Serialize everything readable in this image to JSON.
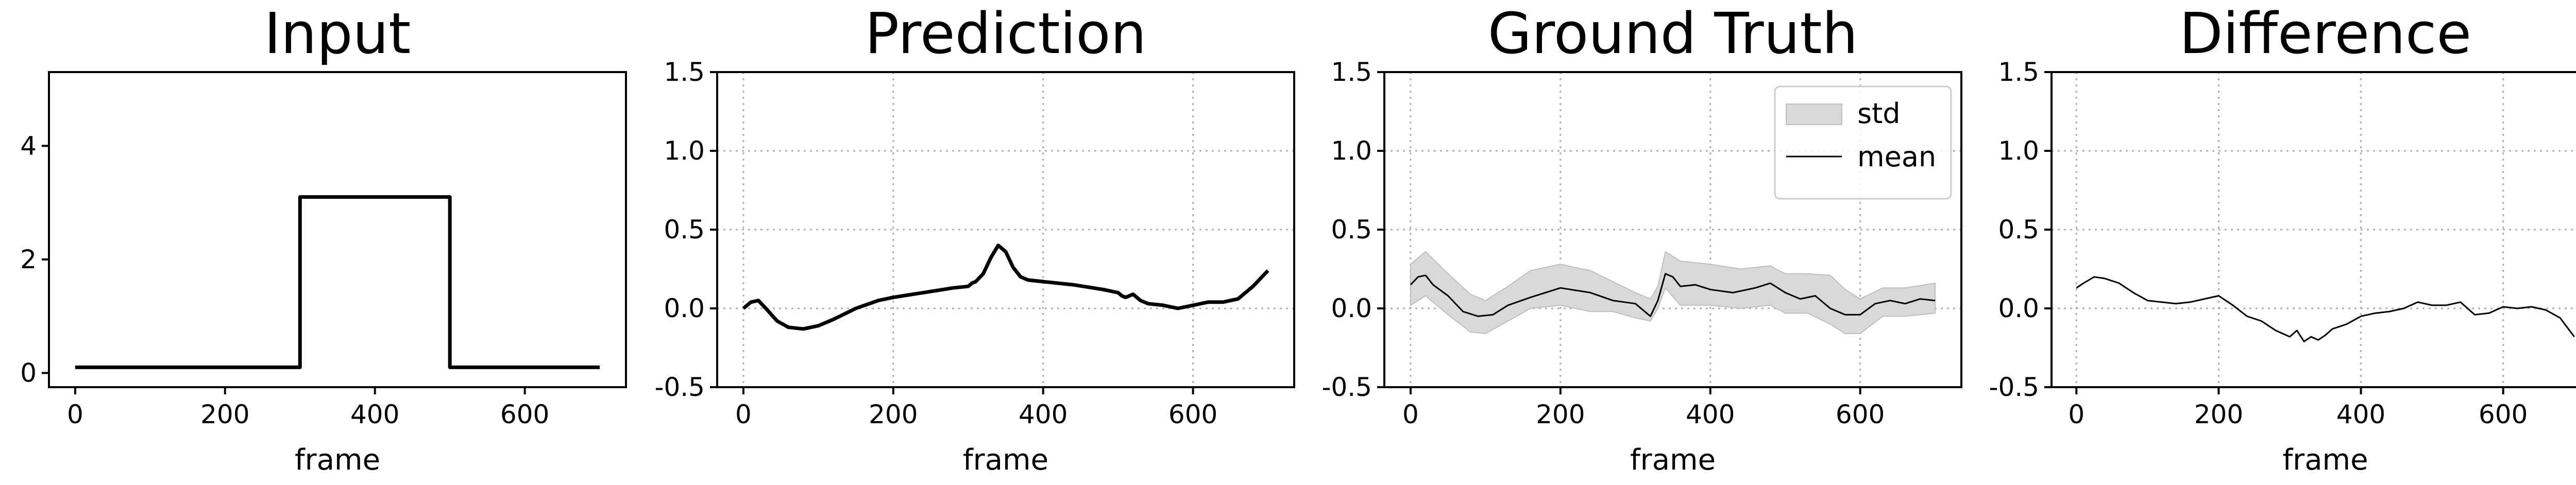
{
  "chart_data": [
    {
      "type": "line",
      "title": "Input",
      "xlabel": "frame",
      "ylabel": "",
      "xlim": [
        -35,
        735
      ],
      "ylim": [
        -0.25,
        5.3
      ],
      "xticks": [
        0,
        200,
        400,
        600
      ],
      "yticks": [
        0,
        2,
        4
      ],
      "grid": false,
      "series": [
        {
          "color": "#000000",
          "line_width": "thick",
          "x": [
            0,
            300,
            300,
            500,
            500,
            700
          ],
          "y": [
            0.1,
            0.1,
            3.1,
            3.1,
            0.1,
            0.1
          ]
        }
      ]
    },
    {
      "type": "line",
      "title": "Prediction",
      "xlabel": "frame",
      "ylabel": "",
      "xlim": [
        -35,
        735
      ],
      "ylim": [
        -0.5,
        1.5
      ],
      "xticks": [
        0,
        200,
        400,
        600
      ],
      "yticks": [
        -0.5,
        0.0,
        0.5,
        1.0,
        1.5
      ],
      "grid": true,
      "series": [
        {
          "color": "#000000",
          "line_width": "thick",
          "x": [
            0,
            10,
            20,
            30,
            45,
            60,
            80,
            100,
            120,
            150,
            180,
            200,
            240,
            280,
            300,
            305,
            310,
            320,
            330,
            340,
            350,
            360,
            370,
            380,
            400,
            440,
            480,
            500,
            505,
            510,
            520,
            530,
            540,
            560,
            580,
            600,
            620,
            640,
            660,
            680,
            700
          ],
          "y": [
            0.0,
            0.04,
            0.05,
            0.0,
            -0.08,
            -0.12,
            -0.13,
            -0.11,
            -0.07,
            0.0,
            0.05,
            0.07,
            0.1,
            0.13,
            0.14,
            0.16,
            0.17,
            0.22,
            0.32,
            0.4,
            0.36,
            0.26,
            0.2,
            0.18,
            0.17,
            0.15,
            0.12,
            0.1,
            0.08,
            0.07,
            0.09,
            0.05,
            0.03,
            0.02,
            0.0,
            0.02,
            0.04,
            0.04,
            0.06,
            0.14,
            0.24
          ]
        }
      ]
    },
    {
      "type": "area",
      "title": "Ground Truth",
      "xlabel": "frame",
      "ylabel": "",
      "xlim": [
        -35,
        735
      ],
      "ylim": [
        -0.5,
        1.5
      ],
      "xticks": [
        0,
        200,
        400,
        600
      ],
      "yticks": [
        -0.5,
        0.0,
        0.5,
        1.0,
        1.5
      ],
      "grid": true,
      "legend_position": "top-right",
      "series": [
        {
          "name": "std",
          "kind": "band",
          "color": "#d9d9d9",
          "x": [
            0,
            20,
            50,
            80,
            100,
            130,
            160,
            200,
            240,
            270,
            300,
            320,
            330,
            340,
            360,
            400,
            440,
            480,
            500,
            530,
            560,
            580,
            600,
            630,
            660,
            700
          ],
          "upper": [
            0.28,
            0.36,
            0.22,
            0.09,
            0.05,
            0.14,
            0.24,
            0.28,
            0.24,
            0.17,
            0.1,
            0.06,
            0.14,
            0.36,
            0.3,
            0.28,
            0.25,
            0.27,
            0.22,
            0.22,
            0.21,
            0.12,
            0.06,
            0.13,
            0.13,
            0.16
          ],
          "lower": [
            0.02,
            0.08,
            -0.04,
            -0.15,
            -0.16,
            -0.08,
            0.0,
            0.02,
            -0.02,
            -0.02,
            -0.06,
            -0.08,
            0.0,
            0.13,
            0.02,
            0.02,
            0.0,
            0.02,
            -0.03,
            -0.03,
            -0.1,
            -0.16,
            -0.16,
            -0.05,
            -0.05,
            -0.03
          ]
        },
        {
          "name": "mean",
          "kind": "line",
          "color": "#000000",
          "line_width": "thin",
          "x": [
            0,
            10,
            20,
            30,
            50,
            70,
            90,
            110,
            130,
            160,
            200,
            240,
            270,
            300,
            320,
            330,
            340,
            350,
            360,
            380,
            400,
            430,
            460,
            480,
            500,
            520,
            540,
            560,
            580,
            600,
            620,
            640,
            660,
            680,
            700
          ],
          "y": [
            0.15,
            0.2,
            0.21,
            0.15,
            0.08,
            -0.02,
            -0.05,
            -0.04,
            0.02,
            0.07,
            0.13,
            0.1,
            0.05,
            0.03,
            -0.05,
            0.05,
            0.22,
            0.2,
            0.14,
            0.15,
            0.12,
            0.1,
            0.13,
            0.16,
            0.1,
            0.06,
            0.08,
            0.0,
            -0.04,
            -0.04,
            0.03,
            0.05,
            0.03,
            0.06,
            0.05
          ]
        }
      ]
    },
    {
      "type": "line",
      "title": "Difference",
      "xlabel": "frame",
      "ylabel": "",
      "xlim": [
        -35,
        735
      ],
      "ylim": [
        -0.5,
        1.5
      ],
      "xticks": [
        0,
        200,
        400,
        600
      ],
      "yticks": [
        -0.5,
        0.0,
        0.5,
        1.0,
        1.5
      ],
      "grid": true,
      "series": [
        {
          "color": "#000000",
          "line_width": "thin",
          "x": [
            0,
            10,
            25,
            40,
            60,
            80,
            100,
            120,
            140,
            160,
            180,
            200,
            220,
            240,
            260,
            280,
            300,
            310,
            320,
            330,
            340,
            350,
            360,
            380,
            400,
            420,
            440,
            460,
            480,
            500,
            520,
            540,
            560,
            580,
            600,
            620,
            640,
            660,
            680,
            700
          ],
          "y": [
            0.13,
            0.16,
            0.2,
            0.19,
            0.16,
            0.1,
            0.05,
            0.04,
            0.03,
            0.04,
            0.06,
            0.08,
            0.02,
            -0.05,
            -0.08,
            -0.14,
            -0.18,
            -0.14,
            -0.21,
            -0.18,
            -0.2,
            -0.17,
            -0.13,
            -0.1,
            -0.05,
            -0.03,
            -0.02,
            0.0,
            0.04,
            0.02,
            0.02,
            0.04,
            -0.04,
            -0.03,
            0.01,
            0.0,
            0.01,
            -0.01,
            -0.06,
            -0.18
          ]
        }
      ]
    }
  ]
}
